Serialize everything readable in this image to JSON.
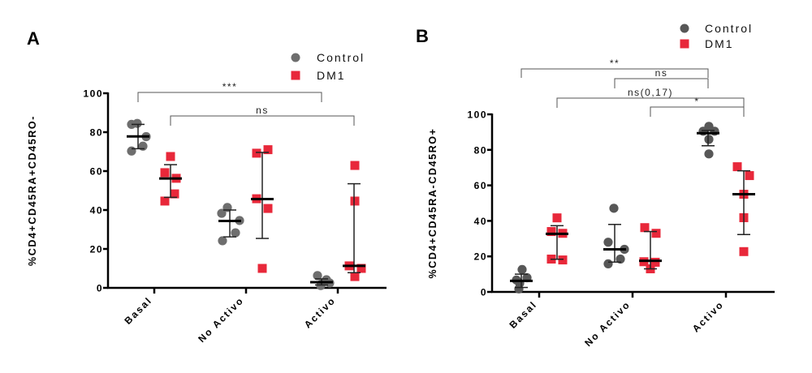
{
  "colors": {
    "control": "#6e6e6e",
    "control_b": "#575757",
    "dm1": "#e8283a"
  },
  "chart_data": [
    {
      "panel": "A",
      "type": "scatter",
      "title": "",
      "xlabel": "",
      "ylabel": "%CD4+CD45RA+CD45RO-",
      "ylim": [
        0,
        100
      ],
      "yticks": [
        0,
        20,
        40,
        60,
        80,
        100
      ],
      "categories": [
        "Basal",
        "No Activo",
        "Activo"
      ],
      "legend": {
        "position": "top-right",
        "entries": [
          "Control",
          "DM1"
        ]
      },
      "grid": false,
      "series": [
        {
          "name": "Control",
          "marker": "circle",
          "points": [
            [
              84,
              84.5,
              77.7,
              72.8,
              70.3
            ],
            [
              41.3,
              38.3,
              34.6,
              28.3,
              24.2
            ],
            [
              6.3,
              4.2,
              2.5,
              2.0,
              1.2
            ]
          ],
          "median": [
            77.8,
            34.4,
            2.9
          ],
          "error_high": [
            84.0,
            40.0,
            4.6
          ],
          "error_low": [
            71.5,
            26.2,
            1.5
          ]
        },
        {
          "name": "DM1",
          "marker": "square",
          "points": [
            [
              67.5,
              59.2,
              56.3,
              48.3,
              44.6
            ],
            [
              69.2,
              71.0,
              45.8,
              40.8,
              10.0
            ],
            [
              62.9,
              44.6,
              11.3,
              10.0,
              5.8
            ]
          ],
          "median": [
            56.2,
            45.6,
            11.3
          ],
          "error_high": [
            63.3,
            69.6,
            53.5
          ],
          "error_low": [
            46.5,
            25.4,
            7.8
          ]
        }
      ],
      "annotations": [
        {
          "label": "***",
          "from": [
            "Basal",
            "Control"
          ],
          "to": [
            "Activo",
            "Control"
          ],
          "level": 0
        },
        {
          "label": "ns",
          "from": [
            "Basal",
            "DM1"
          ],
          "to": [
            "Activo",
            "DM1"
          ],
          "level": 1
        }
      ]
    },
    {
      "panel": "B",
      "type": "scatter",
      "title": "",
      "xlabel": "",
      "ylabel": "%CD4+CD45RA-CD45RO+",
      "ylim": [
        0,
        100
      ],
      "yticks": [
        0,
        20,
        40,
        60,
        80,
        100
      ],
      "categories": [
        "Basal",
        "No Activo",
        "Activo"
      ],
      "legend": {
        "position": "top-right",
        "entries": [
          "Control",
          "DM1"
        ]
      },
      "grid": false,
      "series": [
        {
          "name": "Control",
          "marker": "circle",
          "points": [
            [
              12.6,
              8.0,
              6.7,
              4.9,
              1.7
            ],
            [
              47.1,
              28.0,
              24.0,
              18.5,
              15.8
            ],
            [
              93.2,
              90.5,
              90.5,
              85.9,
              77.7
            ]
          ],
          "median": [
            6.2,
            24.0,
            89.4
          ],
          "error_high": [
            10.0,
            38.0,
            90.9
          ],
          "error_low": [
            2.5,
            16.8,
            82.3
          ]
        },
        {
          "name": "DM1",
          "marker": "square",
          "points": [
            [
              41.7,
              34.0,
              33.0,
              18.5,
              18.0
            ],
            [
              36.2,
              33.0,
              17.0,
              16.7,
              13.0
            ],
            [
              70.5,
              65.5,
              55.0,
              41.8,
              22.7
            ]
          ],
          "median": [
            32.7,
            17.5,
            55.0
          ],
          "error_high": [
            37.3,
            34.0,
            68.2
          ],
          "error_low": [
            18.4,
            13.0,
            32.3
          ]
        }
      ],
      "annotations": [
        {
          "label": "**",
          "from": [
            "Basal",
            "Control"
          ],
          "to": [
            "Activo",
            "Control"
          ],
          "level": 0
        },
        {
          "label": "ns",
          "from": [
            "No Activo",
            "Control"
          ],
          "to": [
            "Activo",
            "Control"
          ],
          "level": 1
        },
        {
          "label": "ns(0,17)",
          "from": [
            "Basal",
            "DM1"
          ],
          "to": [
            "Activo",
            "DM1"
          ],
          "level": 2
        },
        {
          "label": "*",
          "from": [
            "No Activo",
            "DM1"
          ],
          "to": [
            "Activo",
            "DM1"
          ],
          "level": 3
        }
      ]
    }
  ],
  "panels": {
    "a": {
      "letter": "A"
    },
    "b": {
      "letter": "B"
    }
  }
}
